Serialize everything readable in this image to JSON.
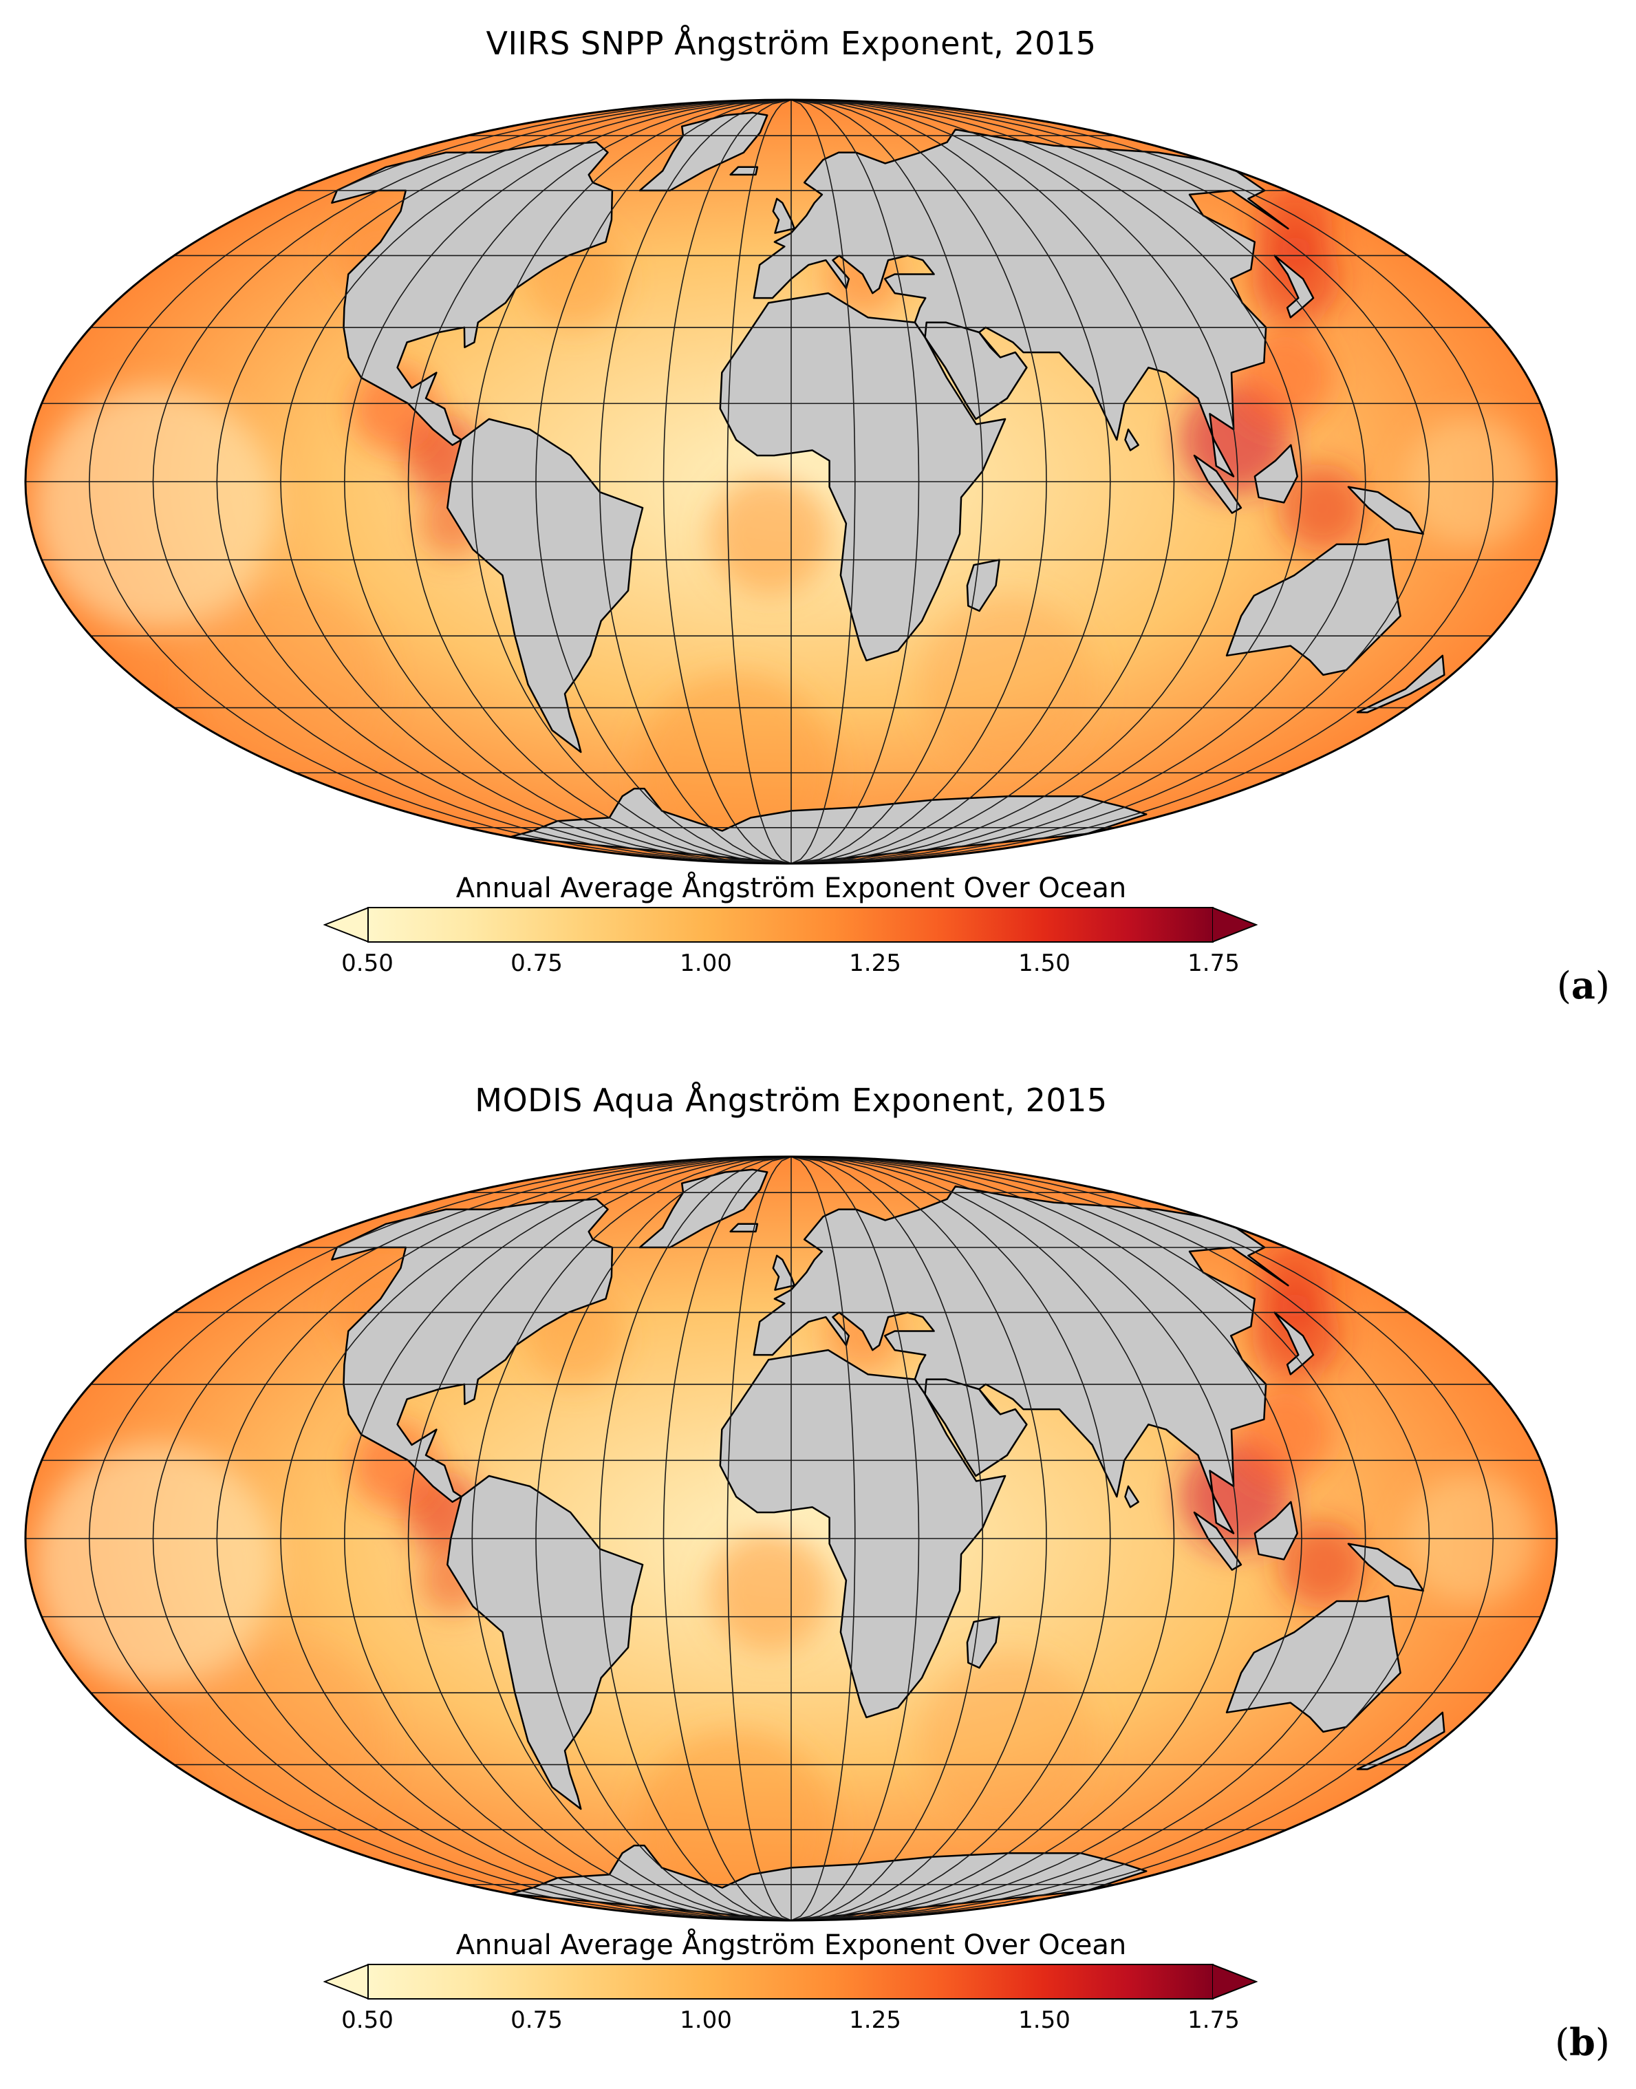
{
  "panels": [
    {
      "title": "VIIRS SNPP Ångström Exponent, 2015",
      "colorbar_title": "Annual Average Ångström Exponent Over Ocean",
      "ticks": [
        "0.50",
        "0.75",
        "1.00",
        "1.25",
        "1.50",
        "1.75"
      ],
      "label_open": "(",
      "label_letter": "a",
      "label_close": ")"
    },
    {
      "title": "MODIS Aqua Ångström Exponent, 2015",
      "colorbar_title": "Annual Average Ångström Exponent Over Ocean",
      "ticks": [
        "0.50",
        "0.75",
        "1.00",
        "1.25",
        "1.50",
        "1.75"
      ],
      "label_open": "(",
      "label_letter": "b",
      "label_close": ")"
    }
  ],
  "colors": {
    "land": "#c8c8c8",
    "ocean_low": "#fff1c0",
    "ocean_mid": "#ffc56a",
    "ocean_high": "#ff7a2a",
    "coast_high": "#d61a3a",
    "grid": "#1a1a1a"
  },
  "colorscale": {
    "min": 0.5,
    "max": 1.75,
    "extend": "both"
  },
  "projection": "mollweide"
}
